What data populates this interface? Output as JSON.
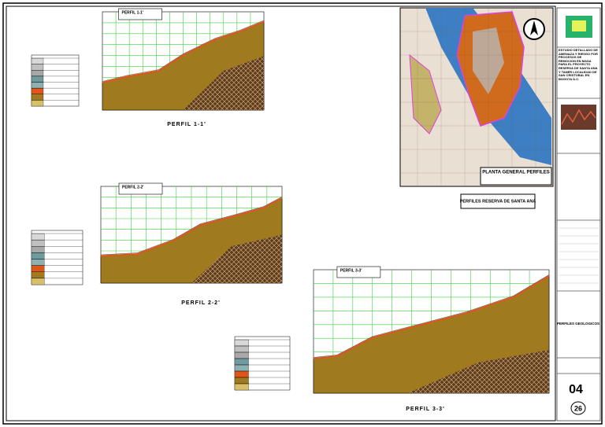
{
  "sheet": {
    "title": "ESTUDIO DETALLADO DE AMENAZA Y RIESGO POR PROCESOS DE REMOCION EN MASA PARA EL PROYECTO RESERVA DE SANTA ANA Y TANER LOCALIDAD DE SAN CRISTOBAL EN BOGOTA D.C.",
    "subject": "PERFILES GEOLOGICOS",
    "sheet_number": "04",
    "total_sheets": "26"
  },
  "profiles": [
    {
      "title": "PERFIL 1-1'"
    },
    {
      "title": "PERFIL 2-2'"
    },
    {
      "title": "PERFIL 3-3'"
    }
  ],
  "map": {
    "title": "PLANTA GENERAL PERFILES",
    "caption": "PERFILES RESERVA DE SANTA ANA"
  }
}
